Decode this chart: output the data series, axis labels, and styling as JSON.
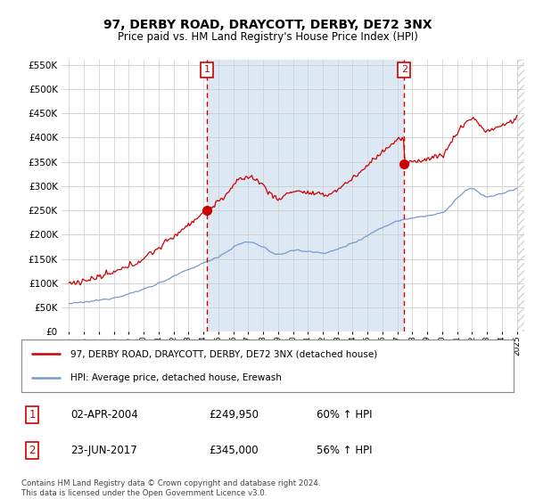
{
  "title": "97, DERBY ROAD, DRAYCOTT, DERBY, DE72 3NX",
  "subtitle": "Price paid vs. HM Land Registry's House Price Index (HPI)",
  "title_fontsize": 10,
  "subtitle_fontsize": 8.5,
  "sale1_date": "02-APR-2004",
  "sale1_price": 249950,
  "sale1_label": "1",
  "sale1_hpi_pct": "60% ↑ HPI",
  "sale2_date": "23-JUN-2017",
  "sale2_price": 345000,
  "sale2_label": "2",
  "sale2_hpi_pct": "56% ↑ HPI",
  "legend_line1": "97, DERBY ROAD, DRAYCOTT, DERBY, DE72 3NX (detached house)",
  "legend_line2": "HPI: Average price, detached house, Erewash",
  "footer1": "Contains HM Land Registry data © Crown copyright and database right 2024.",
  "footer2": "This data is licensed under the Open Government Licence v3.0.",
  "red_color": "#cc0000",
  "blue_color": "#7799cc",
  "shade_color": "#dde8f5",
  "marker_box_color": "#cc0000",
  "bg_color": "#ffffff",
  "grid_color": "#cccccc",
  "ylim": [
    0,
    560000
  ],
  "xlim_start": 1994.5,
  "xlim_end": 2025.5
}
